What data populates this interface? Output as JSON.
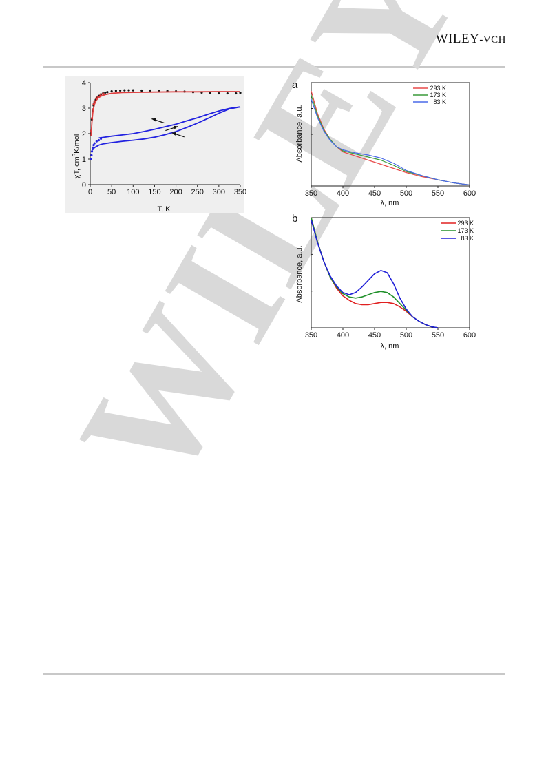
{
  "header": {
    "publisher_main": "WILEY",
    "publisher_suffix": "-VCH"
  },
  "watermark": "WILEY",
  "chart_data": [
    {
      "id": "magnetic",
      "type": "scatter",
      "title": "",
      "xlabel": "T, K",
      "ylabel_prefix": "χT, cm",
      "ylabel_sup": "3",
      "ylabel_suffix": "K/mol",
      "xlim": [
        0,
        350
      ],
      "ylim": [
        0,
        4
      ],
      "xticks": [
        0,
        50,
        100,
        150,
        200,
        250,
        300,
        350
      ],
      "yticks": [
        0,
        1,
        2,
        3,
        4
      ],
      "grid": false,
      "series": [
        {
          "style": "points",
          "color": "#111111",
          "x": [
            2,
            4,
            6,
            8,
            10,
            13,
            16,
            20,
            25,
            30,
            35,
            40,
            50,
            60,
            70,
            80,
            90,
            100,
            120,
            140,
            160,
            180,
            200,
            220,
            240,
            260,
            280,
            300,
            320,
            340,
            350
          ],
          "y": [
            2.0,
            2.55,
            2.9,
            3.1,
            3.22,
            3.33,
            3.41,
            3.48,
            3.54,
            3.58,
            3.61,
            3.63,
            3.66,
            3.68,
            3.69,
            3.7,
            3.7,
            3.7,
            3.69,
            3.69,
            3.68,
            3.67,
            3.66,
            3.65,
            3.63,
            3.61,
            3.6,
            3.58,
            3.58,
            3.58,
            3.6
          ]
        },
        {
          "style": "points",
          "color": "#d03030",
          "x": [
            2,
            4,
            6,
            8,
            10,
            14,
            18,
            24,
            30
          ],
          "y": [
            2.1,
            2.6,
            2.95,
            3.15,
            3.27,
            3.38,
            3.45,
            3.52,
            3.56
          ]
        },
        {
          "style": "line",
          "color": "#e04040",
          "x": [
            2,
            4,
            6,
            8,
            10,
            14,
            18,
            25,
            35,
            50,
            75,
            100,
            150,
            200,
            250,
            300,
            350
          ],
          "y": [
            1.9,
            2.45,
            2.8,
            3.02,
            3.15,
            3.3,
            3.39,
            3.47,
            3.53,
            3.58,
            3.61,
            3.62,
            3.63,
            3.64,
            3.64,
            3.65,
            3.65
          ]
        },
        {
          "style": "line",
          "color": "#2222e0",
          "x": [
            20,
            30,
            50,
            75,
            100,
            125,
            150,
            175,
            200,
            225,
            250,
            275,
            300,
            325,
            350
          ],
          "y": [
            1.83,
            1.85,
            1.9,
            1.95,
            2.0,
            2.08,
            2.17,
            2.27,
            2.37,
            2.5,
            2.62,
            2.76,
            2.89,
            2.99,
            3.05
          ]
        },
        {
          "style": "line",
          "color": "#2222e0",
          "x": [
            5,
            10,
            20,
            30,
            50,
            75,
            100,
            125,
            150,
            175,
            200,
            225,
            250,
            275,
            300,
            325,
            350
          ],
          "y": [
            1.35,
            1.45,
            1.55,
            1.6,
            1.65,
            1.7,
            1.74,
            1.79,
            1.86,
            1.96,
            2.08,
            2.24,
            2.41,
            2.6,
            2.8,
            2.97,
            3.05
          ]
        },
        {
          "style": "points",
          "color": "#2222e0",
          "x": [
            2,
            3,
            4,
            6,
            8,
            10,
            15,
            20,
            25
          ],
          "y": [
            1.0,
            1.15,
            1.3,
            1.45,
            1.55,
            1.62,
            1.7,
            1.74,
            1.8
          ]
        }
      ],
      "arrows": [
        {
          "x": 158,
          "y": 2.5,
          "direction": "left"
        },
        {
          "x": 190,
          "y": 2.2,
          "direction": "right"
        },
        {
          "x": 205,
          "y": 1.95,
          "direction": "left"
        }
      ]
    },
    {
      "id": "absorbance-a",
      "type": "line",
      "panel_label": "a",
      "title": "",
      "xlabel": "λ, nm",
      "ylabel": "Absorbance, a.u.",
      "xlim": [
        350,
        600
      ],
      "ylim": [
        0,
        1
      ],
      "xticks": [
        350,
        400,
        450,
        500,
        550,
        600
      ],
      "grid": false,
      "legend_position": "top-right",
      "series": [
        {
          "name": "293 K",
          "color": "#e84a4a",
          "x": [
            350,
            360,
            370,
            380,
            390,
            400,
            420,
            440,
            460,
            480,
            500,
            525,
            550,
            575,
            600
          ],
          "y": [
            0.92,
            0.7,
            0.55,
            0.45,
            0.38,
            0.33,
            0.29,
            0.25,
            0.21,
            0.17,
            0.13,
            0.09,
            0.06,
            0.03,
            0.01
          ]
        },
        {
          "name": "173 K",
          "color": "#3a9a3a",
          "x": [
            350,
            360,
            370,
            380,
            390,
            400,
            420,
            440,
            460,
            480,
            500,
            525,
            550,
            575,
            600
          ],
          "y": [
            0.88,
            0.68,
            0.54,
            0.45,
            0.38,
            0.34,
            0.31,
            0.28,
            0.25,
            0.2,
            0.14,
            0.1,
            0.06,
            0.03,
            0.01
          ]
        },
        {
          "name": "83 K",
          "color": "#4a6ae8",
          "x": [
            350,
            360,
            370,
            380,
            390,
            400,
            420,
            440,
            460,
            480,
            500,
            525,
            550,
            575,
            600
          ],
          "y": [
            0.84,
            0.66,
            0.53,
            0.44,
            0.38,
            0.35,
            0.32,
            0.3,
            0.27,
            0.22,
            0.15,
            0.1,
            0.06,
            0.03,
            0.01
          ]
        }
      ]
    },
    {
      "id": "absorbance-b",
      "type": "line",
      "panel_label": "b",
      "title": "",
      "xlabel": "λ, nm",
      "ylabel": "Absorbance, a.u.",
      "xlim": [
        350,
        600
      ],
      "ylim": [
        0,
        1
      ],
      "xticks": [
        350,
        400,
        450,
        500,
        550,
        600
      ],
      "grid": false,
      "legend_position": "top-right",
      "series": [
        {
          "name": "293 K",
          "color": "#e02020",
          "x": [
            350,
            360,
            370,
            380,
            390,
            400,
            410,
            420,
            430,
            440,
            450,
            460,
            470,
            480,
            490,
            500,
            510,
            520,
            530,
            540,
            550
          ],
          "y": [
            1.0,
            0.78,
            0.6,
            0.46,
            0.36,
            0.29,
            0.25,
            0.22,
            0.21,
            0.21,
            0.22,
            0.23,
            0.23,
            0.22,
            0.19,
            0.15,
            0.1,
            0.06,
            0.03,
            0.01,
            0.0
          ]
        },
        {
          "name": "173 K",
          "color": "#20902a",
          "x": [
            350,
            360,
            370,
            380,
            390,
            400,
            410,
            420,
            430,
            440,
            450,
            460,
            470,
            480,
            490,
            500,
            510,
            520,
            530,
            540,
            550
          ],
          "y": [
            1.0,
            0.78,
            0.6,
            0.46,
            0.37,
            0.31,
            0.28,
            0.27,
            0.28,
            0.3,
            0.32,
            0.33,
            0.32,
            0.28,
            0.22,
            0.16,
            0.1,
            0.06,
            0.03,
            0.01,
            0.0
          ]
        },
        {
          "name": "83 K",
          "color": "#2020d8",
          "x": [
            350,
            360,
            370,
            380,
            390,
            400,
            410,
            420,
            430,
            440,
            450,
            460,
            470,
            480,
            490,
            500,
            510,
            520,
            530,
            540,
            550
          ],
          "y": [
            0.98,
            0.77,
            0.6,
            0.47,
            0.38,
            0.32,
            0.3,
            0.32,
            0.37,
            0.43,
            0.49,
            0.52,
            0.5,
            0.4,
            0.27,
            0.17,
            0.1,
            0.06,
            0.03,
            0.01,
            0.0
          ]
        }
      ]
    }
  ]
}
